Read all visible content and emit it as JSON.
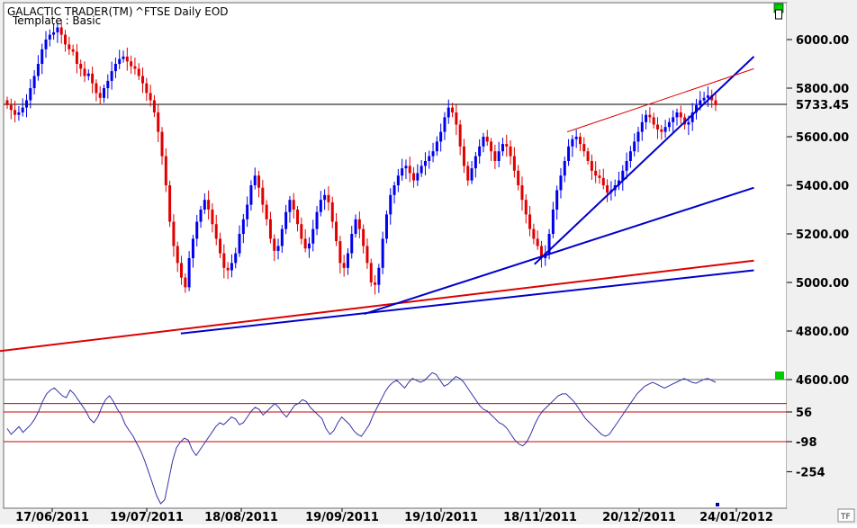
{
  "window": {
    "app_title": "GALACTIC TRADER(TM)",
    "symbol_title": "^FTSE Daily EOD",
    "template_label": "Template : Basic",
    "corner_badge": "TF"
  },
  "colors": {
    "panel_border": "#6b6b6b",
    "frame_bg": "#f0f0f0",
    "up_candle": "#0000ee",
    "down_candle": "#e00000",
    "trend_blue": "#0000cc",
    "trend_red": "#dd0000",
    "oscillator": "#3333aa",
    "level_line": "#cc0000",
    "marker_green": "#00cc00"
  },
  "chart_data": [
    {
      "type": "candlestick",
      "title": "^FTSE Daily EOD",
      "x": [
        "17/06/2011",
        "19/07/2011",
        "18/08/2011",
        "19/09/2011",
        "19/10/2011",
        "18/11/2011",
        "20/12/2011",
        "24/01/2012"
      ],
      "y_ticks": [
        "6000.00",
        "5800.00",
        "5733.45",
        "5600.00",
        "5400.00",
        "5200.00",
        "5000.00",
        "4800.00",
        "4600.00"
      ],
      "ylim": [
        4600,
        6150
      ],
      "last_value": "5733.45",
      "closes": [
        5730,
        5710,
        5690,
        5700,
        5720,
        5750,
        5800,
        5850,
        5900,
        5960,
        6000,
        6020,
        6030,
        6050,
        6020,
        5980,
        5960,
        5950,
        5900,
        5880,
        5850,
        5860,
        5820,
        5780,
        5760,
        5800,
        5830,
        5870,
        5900,
        5920,
        5930,
        5910,
        5890,
        5880,
        5850,
        5820,
        5780,
        5750,
        5700,
        5620,
        5520,
        5400,
        5250,
        5150,
        5080,
        5020,
        4980,
        5100,
        5180,
        5250,
        5300,
        5340,
        5300,
        5240,
        5180,
        5120,
        5060,
        5050,
        5080,
        5120,
        5200,
        5260,
        5320,
        5400,
        5440,
        5390,
        5320,
        5260,
        5180,
        5130,
        5150,
        5220,
        5290,
        5340,
        5300,
        5240,
        5180,
        5140,
        5160,
        5220,
        5290,
        5340,
        5360,
        5330,
        5250,
        5170,
        5080,
        5060,
        5120,
        5200,
        5260,
        5220,
        5150,
        5080,
        5000,
        4990,
        5060,
        5180,
        5280,
        5360,
        5400,
        5440,
        5470,
        5480,
        5450,
        5420,
        5450,
        5480,
        5500,
        5520,
        5540,
        5580,
        5620,
        5680,
        5720,
        5700,
        5650,
        5560,
        5480,
        5420,
        5470,
        5520,
        5560,
        5600,
        5580,
        5540,
        5500,
        5540,
        5570,
        5560,
        5520,
        5460,
        5400,
        5340,
        5280,
        5220,
        5180,
        5150,
        5100,
        5120,
        5200,
        5300,
        5380,
        5440,
        5500,
        5560,
        5590,
        5600,
        5570,
        5540,
        5500,
        5460,
        5440,
        5430,
        5400,
        5370,
        5380,
        5400,
        5420,
        5460,
        5500,
        5540,
        5580,
        5620,
        5660,
        5690,
        5680,
        5650,
        5630,
        5620,
        5640,
        5660,
        5680,
        5700,
        5680,
        5650,
        5660,
        5700,
        5730,
        5750,
        5760,
        5770,
        5750,
        5730
      ],
      "trendlines": [
        {
          "color": "red",
          "from": [
            "2011-06-10",
            4710
          ],
          "to": [
            "2012-01-31",
            5090
          ]
        },
        {
          "color": "blue",
          "from": [
            "2011-08-09",
            4790
          ],
          "to": [
            "2012-01-31",
            5050
          ]
        },
        {
          "color": "blue",
          "from": [
            "2011-10-04",
            4870
          ],
          "to": [
            "2012-01-31",
            5390
          ]
        },
        {
          "color": "blue",
          "from": [
            "2011-11-25",
            5075
          ],
          "to": [
            "2012-01-31",
            5930
          ]
        },
        {
          "color": "red",
          "from": [
            "2011-12-05",
            5620
          ],
          "to": [
            "2012-01-31",
            5880
          ]
        }
      ],
      "horizontal_line": 5733.45
    },
    {
      "type": "line",
      "title": "",
      "y_ticks": [
        "56",
        "-98",
        "-254"
      ],
      "levels": [
        100,
        56,
        -98
      ],
      "values": [
        -30,
        -60,
        -40,
        -20,
        -50,
        -30,
        -10,
        20,
        60,
        110,
        150,
        170,
        180,
        160,
        140,
        130,
        170,
        150,
        120,
        90,
        60,
        20,
        0,
        30,
        80,
        120,
        140,
        110,
        70,
        40,
        -10,
        -40,
        -70,
        -110,
        -150,
        -200,
        -260,
        -320,
        -380,
        -420,
        -400,
        -300,
        -200,
        -130,
        -100,
        -80,
        -90,
        -140,
        -170,
        -140,
        -110,
        -80,
        -50,
        -20,
        0,
        -10,
        10,
        30,
        20,
        -10,
        0,
        30,
        60,
        80,
        70,
        40,
        60,
        80,
        100,
        80,
        50,
        30,
        60,
        90,
        100,
        120,
        110,
        80,
        60,
        40,
        20,
        -30,
        -60,
        -40,
        0,
        30,
        10,
        -10,
        -40,
        -60,
        -70,
        -40,
        -10,
        40,
        80,
        120,
        160,
        190,
        210,
        220,
        200,
        180,
        210,
        230,
        220,
        210,
        220,
        240,
        260,
        250,
        220,
        190,
        200,
        220,
        240,
        230,
        210,
        180,
        150,
        120,
        90,
        70,
        60,
        40,
        20,
        0,
        -10,
        -30,
        -60,
        -90,
        -110,
        -120,
        -100,
        -60,
        -10,
        30,
        60,
        80,
        100,
        120,
        140,
        150,
        150,
        130,
        110,
        80,
        50,
        20,
        0,
        -20,
        -40,
        -60,
        -70,
        -60,
        -30,
        0,
        30,
        60,
        90,
        120,
        150,
        170,
        190,
        200,
        210,
        200,
        190,
        180,
        190,
        200,
        210,
        220,
        230,
        220,
        210,
        205,
        215,
        225,
        230,
        220,
        210
      ]
    }
  ]
}
